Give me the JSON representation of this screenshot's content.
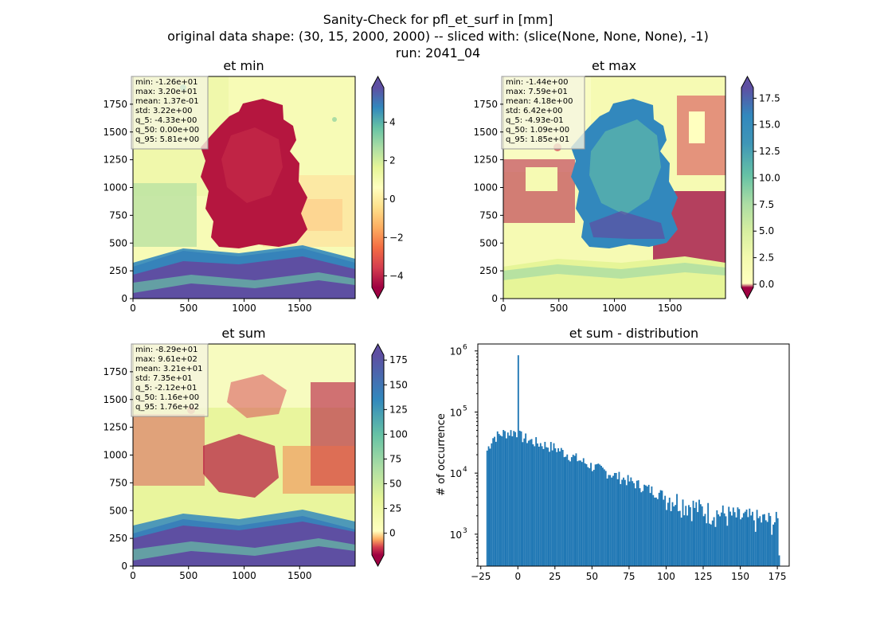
{
  "suptitle": {
    "line1": "Sanity-Check for pfl_et_surf in [mm]",
    "line2": "original data shape: (30, 15, 2000, 2000) -- sliced with: (slice(None, None, None), -1)",
    "line3": "run: 2041_04"
  },
  "colors": {
    "hist_bar": "#1f77b4",
    "spectral": [
      "#9e0142",
      "#d53e4f",
      "#f46d43",
      "#fdae61",
      "#fee08b",
      "#ffffbf",
      "#e6f598",
      "#abdda4",
      "#66c2a5",
      "#3288bd",
      "#5e4fa2"
    ]
  },
  "chart_data": [
    {
      "type": "heatmap",
      "title": "et min",
      "xlim": [
        0,
        2000
      ],
      "ylim": [
        0,
        2000
      ],
      "xticks": [
        "0",
        "500",
        "1000",
        "1500"
      ],
      "yticks": [
        "0",
        "250",
        "500",
        "750",
        "1000",
        "1250",
        "1500",
        "1750"
      ],
      "colorbar": {
        "range": [
          -4.6,
          5.8
        ],
        "ticks": [
          "−4",
          "−2",
          "0",
          "2",
          "4"
        ],
        "tick_values": [
          -4,
          -2,
          0,
          2,
          4
        ],
        "extend": "both"
      },
      "stats": [
        "min: -1.26e+01",
        "max: 3.20e+01",
        "mean: 1.37e-01",
        "std: 3.22e+00",
        "q_5: -4.33e+00",
        "q_50: 0.00e+00",
        "q_95: 5.81e+00"
      ]
    },
    {
      "type": "heatmap",
      "title": "et max",
      "xlim": [
        0,
        2000
      ],
      "ylim": [
        0,
        2000
      ],
      "xticks": [
        "0",
        "500",
        "1000",
        "1500"
      ],
      "yticks": [
        "0",
        "250",
        "500",
        "750",
        "1000",
        "1250",
        "1500",
        "1750"
      ],
      "colorbar": {
        "range": [
          -0.3,
          18.5
        ],
        "ticks": [
          "0.0",
          "2.5",
          "5.0",
          "7.5",
          "10.0",
          "12.5",
          "15.0",
          "17.5"
        ],
        "tick_values": [
          0,
          2.5,
          5,
          7.5,
          10,
          12.5,
          15,
          17.5
        ],
        "extend": "both"
      },
      "stats": [
        "min: -1.44e+00",
        "max: 7.59e+01",
        "mean: 4.18e+00",
        "std: 6.42e+00",
        "q_5: -4.93e-01",
        "q_50: 1.09e+00",
        "q_95: 1.85e+01"
      ]
    },
    {
      "type": "heatmap",
      "title": "et sum",
      "xlim": [
        0,
        2000
      ],
      "ylim": [
        0,
        2000
      ],
      "xticks": [
        "0",
        "500",
        "1000",
        "1500"
      ],
      "yticks": [
        "0",
        "250",
        "500",
        "750",
        "1000",
        "1250",
        "1500",
        "1750"
      ],
      "colorbar": {
        "range": [
          -22,
          180
        ],
        "ticks": [
          "0",
          "25",
          "50",
          "75",
          "100",
          "125",
          "150",
          "175"
        ],
        "tick_values": [
          0,
          25,
          50,
          75,
          100,
          125,
          150,
          175
        ],
        "extend": "both"
      },
      "stats": [
        "min: -8.29e+01",
        "max: 9.61e+02",
        "mean: 3.21e+01",
        "std: 7.35e+01",
        "q_5: -2.12e+01",
        "q_50: 1.16e+00",
        "q_95: 1.76e+02"
      ]
    },
    {
      "type": "bar",
      "title": "et sum - distribution",
      "ylabel": "# of occurrence",
      "xlabel": "",
      "yscale": "log",
      "xlim": [
        -27,
        183
      ],
      "ylim": [
        300,
        1300000
      ],
      "xticks": [
        "−25",
        "0",
        "25",
        "50",
        "75",
        "100",
        "125",
        "150",
        "175"
      ],
      "xtick_values": [
        -25,
        0,
        25,
        50,
        75,
        100,
        125,
        150,
        175
      ],
      "ytick_values": [
        1000,
        10000,
        100000,
        1000000
      ],
      "ytick_exponents": [
        "3",
        "4",
        "5",
        "6"
      ],
      "ytick_base": "10",
      "bin_range": [
        -21.2,
        176
      ],
      "bin_width": 1.0,
      "spike": {
        "x": 0,
        "value": 850000
      },
      "profile": [
        [
          -21.2,
          22000
        ],
        [
          -17,
          38000
        ],
        [
          -10,
          45000
        ],
        [
          -2,
          48000
        ],
        [
          2,
          40000
        ],
        [
          10,
          33000
        ],
        [
          25,
          26000
        ],
        [
          50,
          13000
        ],
        [
          75,
          7500
        ],
        [
          100,
          4200
        ],
        [
          125,
          2500
        ],
        [
          150,
          1900
        ],
        [
          175,
          1600
        ]
      ]
    }
  ]
}
